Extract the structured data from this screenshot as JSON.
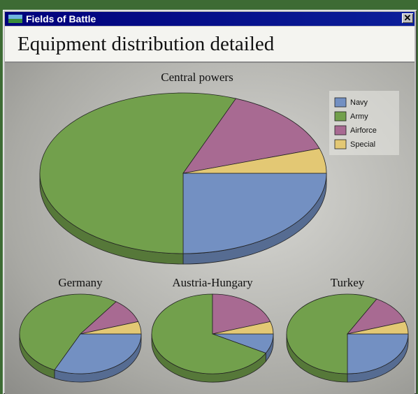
{
  "window_title": "Fields of Battle",
  "heading": "Equipment distribution detailed",
  "chart_data": [
    {
      "type": "pie",
      "title": "Central powers",
      "categories": [
        "Navy",
        "Army",
        "Airforce",
        "Special"
      ],
      "values": [
        25,
        56,
        14,
        5
      ],
      "colors": [
        "#7390c2",
        "#72a04c",
        "#a86a92",
        "#e3c874"
      ],
      "legend": "upper right"
    },
    {
      "type": "pie",
      "title": "Germany",
      "categories": [
        "Navy",
        "Army",
        "Airforce",
        "Special"
      ],
      "values": [
        32,
        53,
        10,
        5
      ],
      "colors": [
        "#7390c2",
        "#72a04c",
        "#a86a92",
        "#e3c874"
      ]
    },
    {
      "type": "pie",
      "title": "Austria-Hungary",
      "categories": [
        "Navy",
        "Army",
        "Airforce",
        "Special"
      ],
      "values": [
        8,
        67,
        20,
        5
      ],
      "colors": [
        "#7390c2",
        "#72a04c",
        "#a86a92",
        "#e3c874"
      ]
    },
    {
      "type": "pie",
      "title": "Turkey",
      "categories": [
        "Navy",
        "Army",
        "Airforce",
        "Special"
      ],
      "values": [
        25,
        58,
        12,
        5
      ],
      "colors": [
        "#7390c2",
        "#72a04c",
        "#a86a92",
        "#e3c874"
      ]
    }
  ]
}
